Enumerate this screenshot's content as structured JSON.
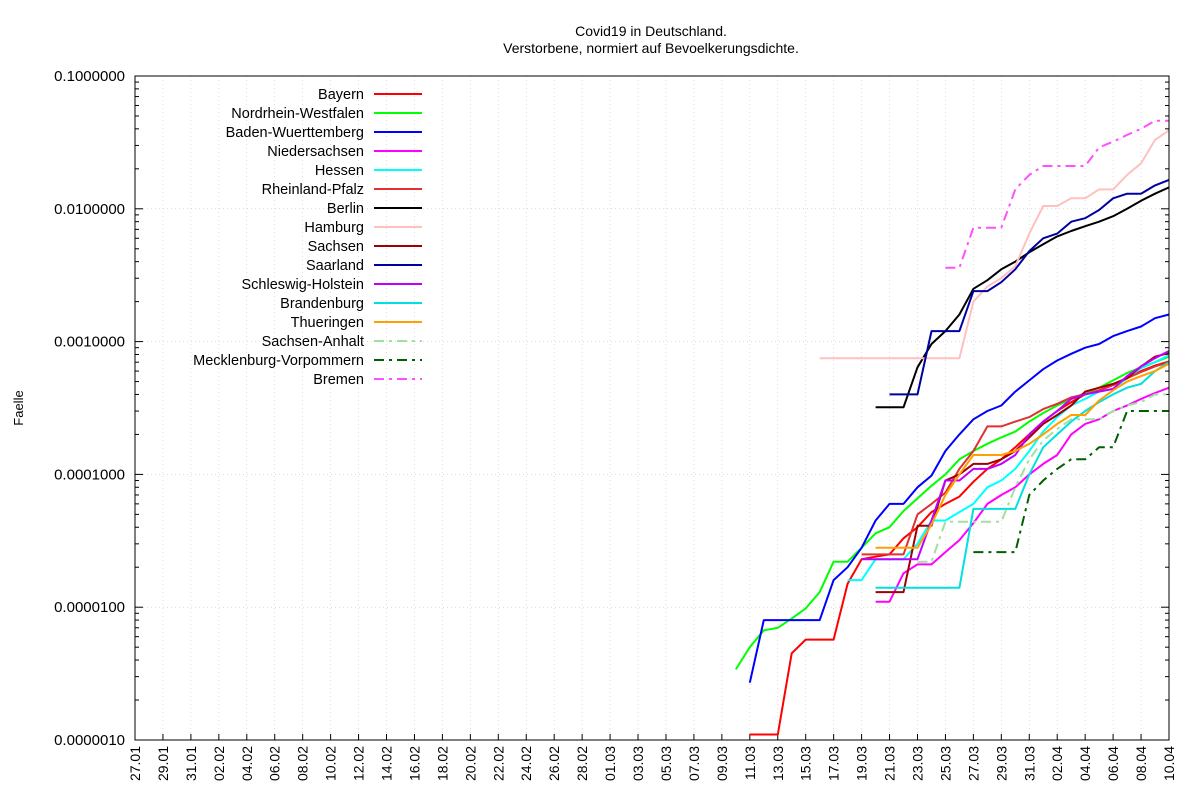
{
  "chart_data": {
    "type": "line",
    "title": "Covid19 in Deutschland.",
    "subtitle": "Verstorbene, normiert auf Bevoelkerungsdichte.",
    "ylabel": "Faelle",
    "xlabel": "",
    "yscale": "log",
    "ylim": [
      1e-06,
      0.1
    ],
    "yticks": [
      {
        "value": 0.1,
        "label": "0.1000000"
      },
      {
        "value": 0.01,
        "label": "0.0100000"
      },
      {
        "value": 0.001,
        "label": "0.0010000"
      },
      {
        "value": 0.0001,
        "label": "0.0001000"
      },
      {
        "value": 1e-05,
        "label": "0.0000100"
      },
      {
        "value": 1e-06,
        "label": "0.0000010"
      }
    ],
    "x_start": "27.01",
    "x_end": "10.04",
    "xticks": [
      "27.01",
      "29.01",
      "31.01",
      "02.02",
      "04.02",
      "06.02",
      "08.02",
      "10.02",
      "12.02",
      "14.02",
      "16.02",
      "18.02",
      "20.02",
      "22.02",
      "24.02",
      "26.02",
      "28.02",
      "01.03",
      "03.03",
      "05.03",
      "07.03",
      "09.03",
      "11.03",
      "13.03",
      "15.03",
      "17.03",
      "19.03",
      "21.03",
      "23.03",
      "25.03",
      "27.03",
      "29.03",
      "31.03",
      "02.04",
      "04.04",
      "06.04",
      "08.04",
      "10.04"
    ],
    "grid": true,
    "legend_position": "top-left",
    "series": [
      {
        "name": "Bayern",
        "color": "#ff0000",
        "dash": "solid",
        "x": [
          "11.03",
          "12.03",
          "13.03",
          "14.03",
          "15.03",
          "16.03",
          "17.03",
          "18.03",
          "19.03",
          "20.03",
          "21.03",
          "22.03",
          "23.03",
          "24.03",
          "25.03",
          "26.03",
          "27.03",
          "28.03",
          "29.03",
          "30.03",
          "31.03",
          "01.04",
          "02.04",
          "03.04",
          "04.04",
          "05.04",
          "06.04",
          "07.04",
          "08.04",
          "09.04",
          "10.04"
        ],
        "y": [
          1.1e-06,
          1.1e-06,
          1.1e-06,
          4.5e-06,
          5.7e-06,
          5.7e-06,
          5.7e-06,
          1.5e-05,
          2.3e-05,
          2.4e-05,
          2.5e-05,
          3.3e-05,
          4e-05,
          5.2e-05,
          6e-05,
          6.8e-05,
          8.8e-05,
          0.00011,
          0.00013,
          0.00016,
          0.0002,
          0.00025,
          0.0003,
          0.00035,
          0.0004,
          0.00043,
          0.00047,
          0.00053,
          0.0006,
          0.00066,
          0.00071
        ]
      },
      {
        "name": "Nordrhein-Westfalen",
        "color": "#00ff00",
        "dash": "solid",
        "x": [
          "10.03",
          "11.03",
          "12.03",
          "13.03",
          "14.03",
          "15.03",
          "16.03",
          "17.03",
          "18.03",
          "19.03",
          "20.03",
          "21.03",
          "22.03",
          "23.03",
          "24.03",
          "25.03",
          "26.03",
          "27.03",
          "28.03",
          "29.03",
          "30.03",
          "31.03",
          "01.04",
          "02.04",
          "03.04",
          "04.04",
          "05.04",
          "06.04",
          "07.04",
          "08.04",
          "09.04",
          "10.04"
        ],
        "y": [
          3.4e-06,
          5e-06,
          6.7e-06,
          7e-06,
          8.2e-06,
          9.8e-06,
          1.3e-05,
          2.2e-05,
          2.2e-05,
          2.8e-05,
          3.6e-05,
          4e-05,
          5.3e-05,
          6.6e-05,
          8.2e-05,
          0.0001,
          0.00013,
          0.00015,
          0.00017,
          0.00019,
          0.00021,
          0.00025,
          0.00029,
          0.00033,
          0.00037,
          0.00041,
          0.00045,
          0.00051,
          0.00058,
          0.00064,
          0.0007,
          0.00077
        ]
      },
      {
        "name": "Baden-Wuerttemberg",
        "color": "#0000ff",
        "dash": "solid",
        "x": [
          "11.03",
          "12.03",
          "13.03",
          "14.03",
          "15.03",
          "16.03",
          "17.03",
          "18.03",
          "19.03",
          "20.03",
          "21.03",
          "22.03",
          "23.03",
          "24.03",
          "25.03",
          "26.03",
          "27.03",
          "28.03",
          "29.03",
          "30.03",
          "31.03",
          "01.04",
          "02.04",
          "03.04",
          "04.04",
          "05.04",
          "06.04",
          "07.04",
          "08.04",
          "09.04",
          "10.04"
        ],
        "y": [
          2.7e-06,
          8e-06,
          8e-06,
          8e-06,
          8e-06,
          8e-06,
          1.6e-05,
          2e-05,
          2.8e-05,
          4.5e-05,
          6e-05,
          6e-05,
          8e-05,
          9.8e-05,
          0.00015,
          0.0002,
          0.00026,
          0.0003,
          0.00033,
          0.00042,
          0.00051,
          0.00062,
          0.00072,
          0.00081,
          0.0009,
          0.00096,
          0.0011,
          0.0012,
          0.0013,
          0.0015,
          0.0016
        ]
      },
      {
        "name": "Niedersachsen",
        "color": "#ff00ff",
        "dash": "solid",
        "x": [
          "20.03",
          "21.03",
          "22.03",
          "23.03",
          "24.03",
          "25.03",
          "26.03",
          "27.03",
          "28.03",
          "29.03",
          "30.03",
          "31.03",
          "01.04",
          "02.04",
          "03.04",
          "04.04",
          "05.04",
          "06.04",
          "07.04",
          "08.04",
          "09.04",
          "10.04"
        ],
        "y": [
          1.1e-05,
          1.1e-05,
          1.8e-05,
          2.1e-05,
          2.1e-05,
          2.6e-05,
          3.2e-05,
          4.3e-05,
          6e-05,
          7e-05,
          8e-05,
          0.0001,
          0.00012,
          0.00014,
          0.0002,
          0.00024,
          0.00026,
          0.0003,
          0.00033,
          0.00037,
          0.00041,
          0.00045
        ]
      },
      {
        "name": "Hessen",
        "color": "#00ffff",
        "dash": "solid",
        "x": [
          "18.03",
          "19.03",
          "20.03",
          "21.03",
          "22.03",
          "23.03",
          "24.03",
          "25.03",
          "26.03",
          "27.03",
          "28.03",
          "29.03",
          "30.03",
          "31.03",
          "01.04",
          "02.04",
          "03.04",
          "04.04",
          "05.04",
          "06.04",
          "07.04",
          "08.04",
          "09.04",
          "10.04"
        ],
        "y": [
          1.6e-05,
          1.6e-05,
          2.3e-05,
          2.3e-05,
          2.3e-05,
          3e-05,
          4.5e-05,
          4.5e-05,
          5.2e-05,
          6e-05,
          8e-05,
          9e-05,
          0.00011,
          0.00015,
          0.00021,
          0.00027,
          0.00033,
          0.00037,
          0.00042,
          0.00044,
          0.00053,
          0.00063,
          0.0007,
          0.00079
        ]
      },
      {
        "name": "Rheinland-Pfalz",
        "color": "#e03030",
        "dash": "solid",
        "x": [
          "19.03",
          "20.03",
          "21.03",
          "22.03",
          "23.03",
          "24.03",
          "25.03",
          "26.03",
          "27.03",
          "28.03",
          "29.03",
          "30.03",
          "31.03",
          "01.04",
          "02.04",
          "03.04",
          "04.04",
          "05.04",
          "06.04",
          "07.04",
          "08.04",
          "09.04",
          "10.04"
        ],
        "y": [
          2.5e-05,
          2.5e-05,
          2.5e-05,
          2.5e-05,
          5e-05,
          6e-05,
          7.3e-05,
          0.00011,
          0.00015,
          0.00023,
          0.00023,
          0.00025,
          0.00027,
          0.00031,
          0.00034,
          0.00038,
          0.0004,
          0.00043,
          0.00047,
          0.00053,
          0.00059,
          0.00065,
          0.0007
        ]
      },
      {
        "name": "Berlin",
        "color": "#000000",
        "dash": "solid",
        "x": [
          "20.03",
          "21.03",
          "22.03",
          "23.03",
          "24.03",
          "25.03",
          "26.03",
          "27.03",
          "28.03",
          "29.03",
          "30.03",
          "31.03",
          "01.04",
          "02.04",
          "03.04",
          "04.04",
          "05.04",
          "06.04",
          "07.04",
          "08.04",
          "09.04",
          "10.04"
        ],
        "y": [
          0.00032,
          0.00032,
          0.00032,
          0.00064,
          0.00096,
          0.0012,
          0.0016,
          0.0025,
          0.0029,
          0.0035,
          0.004,
          0.0047,
          0.0054,
          0.0062,
          0.0068,
          0.0074,
          0.008,
          0.0088,
          0.01,
          0.0115,
          0.013,
          0.0145
        ]
      },
      {
        "name": "Hamburg",
        "color": "#ffc0c0",
        "dash": "solid",
        "x": [
          "16.03",
          "17.03",
          "18.03",
          "19.03",
          "20.03",
          "21.03",
          "22.03",
          "23.03",
          "24.03",
          "25.03",
          "26.03",
          "27.03",
          "28.03",
          "29.03",
          "30.03",
          "31.03",
          "01.04",
          "02.04",
          "03.04",
          "04.04",
          "05.04",
          "06.04",
          "07.04",
          "08.04",
          "09.04",
          "10.04"
        ],
        "y": [
          0.00075,
          0.00075,
          0.00075,
          0.00075,
          0.00075,
          0.00075,
          0.00075,
          0.00075,
          0.00075,
          0.00075,
          0.00075,
          0.002,
          0.0026,
          0.003,
          0.0037,
          0.0065,
          0.0105,
          0.0105,
          0.012,
          0.012,
          0.014,
          0.014,
          0.018,
          0.022,
          0.033,
          0.039
        ]
      },
      {
        "name": "Sachsen",
        "color": "#a00000",
        "dash": "solid",
        "x": [
          "20.03",
          "21.03",
          "22.03",
          "23.03",
          "24.03",
          "25.03",
          "26.03",
          "27.03",
          "28.03",
          "29.03",
          "30.03",
          "31.03",
          "01.04",
          "02.04",
          "03.04",
          "04.04",
          "05.04",
          "06.04",
          "07.04",
          "08.04",
          "09.04",
          "10.04"
        ],
        "y": [
          1.3e-05,
          1.3e-05,
          1.3e-05,
          4.1e-05,
          4.1e-05,
          9e-05,
          0.0001,
          0.00012,
          0.00012,
          0.00013,
          0.00015,
          0.00019,
          0.00024,
          0.00028,
          0.00033,
          0.00042,
          0.00045,
          0.00048,
          0.00053,
          0.00065,
          0.00077,
          0.00082
        ]
      },
      {
        "name": "Saarland",
        "color": "#0000a0",
        "dash": "solid",
        "x": [
          "21.03",
          "22.03",
          "23.03",
          "24.03",
          "25.03",
          "26.03",
          "27.03",
          "28.03",
          "29.03",
          "30.03",
          "31.03",
          "01.04",
          "02.04",
          "03.04",
          "04.04",
          "05.04",
          "06.04",
          "07.04",
          "08.04",
          "09.04",
          "10.04"
        ],
        "y": [
          0.0004,
          0.0004,
          0.0004,
          0.0012,
          0.0012,
          0.0012,
          0.0024,
          0.0024,
          0.0028,
          0.0035,
          0.0048,
          0.006,
          0.0065,
          0.008,
          0.0085,
          0.0098,
          0.012,
          0.013,
          0.013,
          0.015,
          0.0165
        ]
      },
      {
        "name": "Schleswig-Holstein",
        "color": "#c000ff",
        "dash": "solid",
        "x": [
          "19.03",
          "20.03",
          "21.03",
          "22.03",
          "23.03",
          "24.03",
          "25.03",
          "26.03",
          "27.03",
          "28.03",
          "29.03",
          "30.03",
          "31.03",
          "01.04",
          "02.04",
          "03.04",
          "04.04",
          "05.04",
          "06.04",
          "07.04",
          "08.04",
          "09.04",
          "10.04"
        ],
        "y": [
          2.3e-05,
          2.3e-05,
          2.3e-05,
          2.3e-05,
          2.3e-05,
          4.5e-05,
          9e-05,
          9e-05,
          0.00011,
          0.00011,
          0.00012,
          0.00014,
          0.0002,
          0.00025,
          0.0003,
          0.00037,
          0.0004,
          0.00042,
          0.00044,
          0.00055,
          0.00065,
          0.00075,
          0.00085
        ]
      },
      {
        "name": "Brandenburg",
        "color": "#00e0e0",
        "dash": "solid",
        "x": [
          "20.03",
          "21.03",
          "22.03",
          "23.03",
          "24.03",
          "25.03",
          "26.03",
          "27.03",
          "28.03",
          "29.03",
          "30.03",
          "31.03",
          "01.04",
          "02.04",
          "03.04",
          "04.04",
          "05.04",
          "06.04",
          "07.04",
          "08.04",
          "09.04",
          "10.04"
        ],
        "y": [
          1.4e-05,
          1.4e-05,
          1.4e-05,
          1.4e-05,
          1.4e-05,
          1.4e-05,
          1.4e-05,
          5.5e-05,
          5.5e-05,
          5.5e-05,
          5.5e-05,
          0.0001,
          0.00016,
          0.0002,
          0.00025,
          0.0003,
          0.00035,
          0.0004,
          0.00045,
          0.00048,
          0.0006,
          0.0007
        ]
      },
      {
        "name": "Thueringen",
        "color": "#ffa000",
        "dash": "solid",
        "x": [
          "20.03",
          "21.03",
          "22.03",
          "23.03",
          "24.03",
          "25.03",
          "26.03",
          "27.03",
          "28.03",
          "29.03",
          "30.03",
          "31.03",
          "01.04",
          "02.04",
          "03.04",
          "04.04",
          "05.04",
          "06.04",
          "07.04",
          "08.04",
          "09.04",
          "10.04"
        ],
        "y": [
          2.8e-05,
          2.8e-05,
          2.8e-05,
          2.8e-05,
          4.2e-05,
          7e-05,
          0.0001,
          0.00014,
          0.00014,
          0.00014,
          0.00015,
          0.00017,
          0.0002,
          0.00024,
          0.00028,
          0.00028,
          0.00036,
          0.00043,
          0.0005,
          0.00055,
          0.0006,
          0.00068
        ]
      },
      {
        "name": "Sachsen-Anhalt",
        "color": "#a0e0a0",
        "dash": "dashdot",
        "x": [
          "23.03",
          "24.03",
          "25.03",
          "26.03",
          "27.03",
          "28.03",
          "29.03",
          "30.03",
          "31.03",
          "01.04",
          "02.04",
          "03.04",
          "04.04",
          "05.04",
          "06.04",
          "07.04",
          "08.04",
          "09.04",
          "10.04"
        ],
        "y": [
          2.2e-05,
          2.2e-05,
          4.4e-05,
          4.4e-05,
          4.4e-05,
          4.4e-05,
          4.4e-05,
          8e-05,
          0.00013,
          0.00018,
          0.00022,
          0.00026,
          0.00026,
          0.00026,
          0.0003,
          0.00033,
          0.00035,
          0.0004,
          0.0004
        ]
      },
      {
        "name": "Mecklenburg-Vorpommern",
        "color": "#006000",
        "dash": "dashdot",
        "x": [
          "27.03",
          "28.03",
          "29.03",
          "30.03",
          "31.03",
          "01.04",
          "02.04",
          "03.04",
          "04.04",
          "05.04",
          "06.04",
          "07.04",
          "08.04",
          "09.04",
          "10.04"
        ],
        "y": [
          2.6e-05,
          2.6e-05,
          2.6e-05,
          2.6e-05,
          7e-05,
          9e-05,
          0.00011,
          0.00013,
          0.00013,
          0.00016,
          0.00016,
          0.0003,
          0.0003,
          0.0003,
          0.0003
        ]
      },
      {
        "name": "Bremen",
        "color": "#ff50ff",
        "dash": "dashdot",
        "x": [
          "25.03",
          "26.03",
          "27.03",
          "28.03",
          "29.03",
          "30.03",
          "31.03",
          "01.04",
          "02.04",
          "03.04",
          "04.04",
          "05.04",
          "06.04",
          "07.04",
          "08.04",
          "09.04",
          "10.04"
        ],
        "y": [
          0.0036,
          0.0036,
          0.0072,
          0.0072,
          0.0072,
          0.014,
          0.018,
          0.021,
          0.021,
          0.021,
          0.021,
          0.029,
          0.032,
          0.036,
          0.04,
          0.046,
          0.046
        ]
      }
    ]
  }
}
